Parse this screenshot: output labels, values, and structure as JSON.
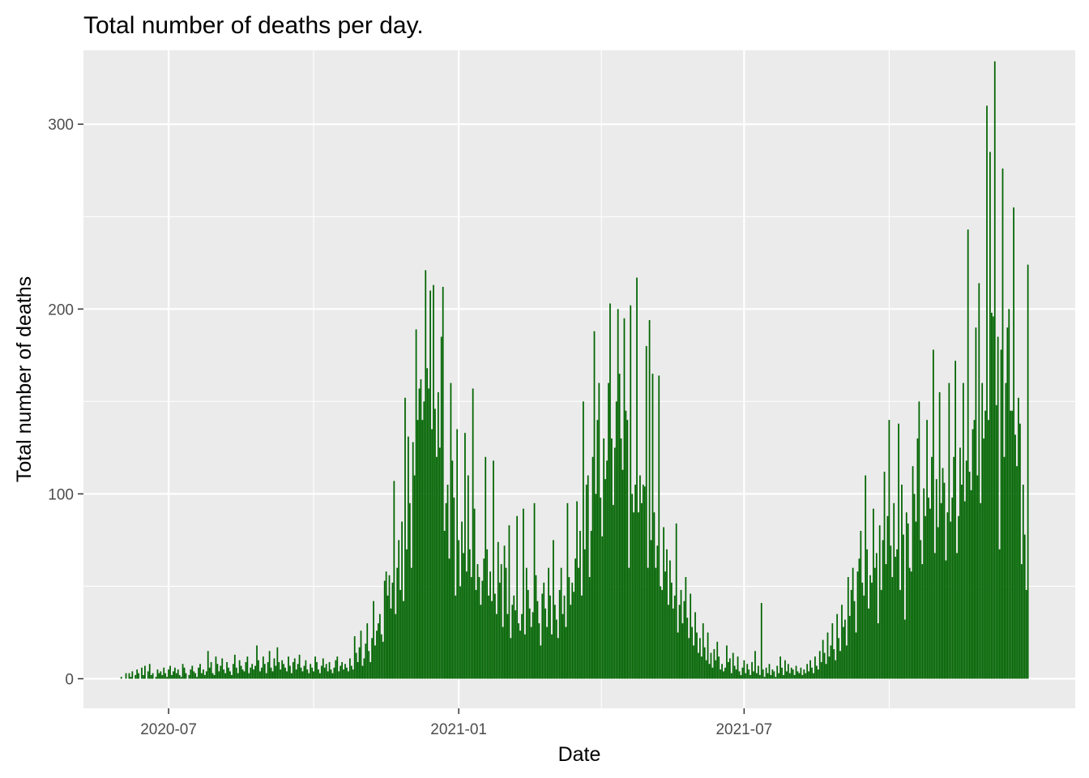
{
  "chart_data": {
    "type": "bar",
    "title": "Total number of deaths per day.",
    "xlabel": "Date",
    "ylabel": "Total number of deaths",
    "x_range": [
      "2020-05-08",
      "2022-01-27"
    ],
    "x_ticks": [
      "2020-07-01",
      "2021-01-01",
      "2021-07-01"
    ],
    "x_tick_labels": [
      "2020-07",
      "2021-01",
      "2021-07"
    ],
    "ylim": [
      -16,
      340
    ],
    "y_ticks": [
      0,
      100,
      200,
      300
    ],
    "y_tick_labels": [
      "0",
      "100",
      "200",
      "300"
    ],
    "grid": true,
    "bar_color": "#006400",
    "panel_color": "#EBEBEB",
    "start_date": "2020-06-01",
    "series": [
      {
        "values": [
          1,
          0,
          0,
          3,
          0,
          3,
          1,
          4,
          0,
          2,
          5,
          3,
          0,
          6,
          2,
          7,
          0,
          4,
          8,
          2,
          3,
          0,
          1,
          5,
          3,
          4,
          2,
          6,
          3,
          1,
          5,
          7,
          2,
          4,
          6,
          3,
          5,
          2,
          1,
          8,
          6,
          3,
          0,
          2,
          5,
          7,
          4,
          3,
          1,
          6,
          8,
          3,
          5,
          2,
          4,
          15,
          6,
          9,
          3,
          2,
          12,
          8,
          4,
          7,
          11,
          5,
          3,
          9,
          6,
          4,
          2,
          8,
          13,
          6,
          3,
          10,
          7,
          5,
          4,
          9,
          12,
          3,
          6,
          8,
          5,
          7,
          18,
          10,
          4,
          6,
          12,
          8,
          3,
          9,
          15,
          6,
          4,
          11,
          7,
          17,
          9,
          5,
          10,
          8,
          6,
          4,
          12,
          7,
          3,
          9,
          11,
          5,
          8,
          13,
          6,
          4,
          7,
          10,
          5,
          3,
          8,
          6,
          4,
          12,
          9,
          5,
          3,
          7,
          11,
          6,
          8,
          4,
          9,
          5,
          3,
          6,
          10,
          12,
          4,
          7,
          9,
          5,
          8,
          6,
          4,
          11,
          7,
          5,
          23,
          14,
          9,
          17,
          26,
          7,
          11,
          19,
          30,
          15,
          9,
          22,
          42,
          18,
          26,
          30,
          35,
          24,
          20,
          53,
          58,
          45,
          56,
          38,
          52,
          107,
          35,
          60,
          75,
          48,
          85,
          42,
          152,
          70,
          131,
          95,
          60,
          128,
          110,
          189,
          140,
          157,
          162,
          140,
          150,
          221,
          168,
          157,
          210,
          135,
          213,
          146,
          120,
          155,
          125,
          185,
          212,
          80,
          95,
          105,
          65,
          160,
          118,
          98,
          45,
          135,
          75,
          50,
          85,
          68,
          133,
          58,
          110,
          70,
          55,
          157,
          92,
          48,
          62,
          55,
          40,
          53,
          65,
          120,
          70,
          45,
          58,
          42,
          118,
          46,
          35,
          74,
          52,
          62,
          28,
          72,
          60,
          35,
          83,
          22,
          40,
          45,
          37,
          88,
          30,
          26,
          35,
          92,
          24,
          60,
          48,
          38,
          28,
          36,
          95,
          56,
          42,
          30,
          18,
          46,
          52,
          38,
          28,
          60,
          45,
          24,
          75,
          40,
          32,
          22,
          48,
          60,
          35,
          45,
          28,
          95,
          55,
          40,
          52,
          47,
          65,
          96,
          60,
          80,
          45,
          150,
          70,
          105,
          110,
          55,
          80,
          120,
          188,
          100,
          140,
          160,
          98,
          77,
          130,
          108,
          118,
          160,
          203,
          130,
          94,
          125,
          150,
          200,
          165,
          130,
          113,
          195,
          145,
          140,
          60,
          202,
          100,
          90,
          105,
          217,
          90,
          110,
          95,
          105,
          104,
          180,
          60,
          194,
          75,
          165,
          90,
          60,
          72,
          164,
          50,
          48,
          82,
          58,
          70,
          40,
          64,
          52,
          38,
          45,
          84,
          25,
          40,
          48,
          30,
          42,
          55,
          33,
          22,
          46,
          28,
          18,
          36,
          25,
          14,
          22,
          12,
          30,
          17,
          10,
          25,
          8,
          14,
          6,
          16,
          10,
          20,
          12,
          5,
          8,
          4,
          6,
          18,
          9,
          11,
          3,
          14,
          7,
          5,
          12,
          4,
          2,
          6,
          10,
          3,
          8,
          5,
          2,
          9,
          4,
          15,
          3,
          7,
          2,
          41,
          5,
          1,
          6,
          3,
          8,
          2,
          5,
          4,
          1,
          7,
          3,
          12,
          6,
          2,
          10,
          4,
          8,
          3,
          6,
          5,
          2,
          7,
          4,
          3,
          6,
          2,
          5,
          3,
          8,
          4,
          10,
          6,
          3,
          12,
          7,
          5,
          15,
          9,
          21,
          14,
          8,
          25,
          12,
          18,
          30,
          16,
          10,
          35,
          22,
          15,
          40,
          28,
          32,
          18,
          55,
          34,
          48,
          60,
          42,
          25,
          58,
          65,
          80,
          52,
          45,
          110,
          70,
          38,
          56,
          52,
          92,
          60,
          68,
          30,
          83,
          48,
          75,
          112,
          62,
          88,
          140,
          72,
          55,
          95,
          66,
          70,
          138,
          48,
          105,
          78,
          32,
          90,
          84,
          60,
          58,
          115,
          100,
          85,
          130,
          150,
          75,
          62,
          103,
          88,
          140,
          98,
          92,
          120,
          178,
          68,
          108,
          82,
          155,
          95,
          114,
          106,
          64,
          90,
          160,
          85,
          98,
          120,
          172,
          68,
          88,
          125,
          105,
          160,
          96,
          118,
          243,
          112,
          102,
          135,
          140,
          190,
          110,
          214,
          95,
          160,
          130,
          145,
          310,
          140,
          285,
          198,
          196,
          334,
          148,
          185,
          70,
          178,
          276,
          120,
          160,
          190,
          200,
          145,
          145,
          255,
          132,
          115,
          152,
          138,
          62,
          105,
          78,
          48,
          224
        ]
      }
    ]
  }
}
